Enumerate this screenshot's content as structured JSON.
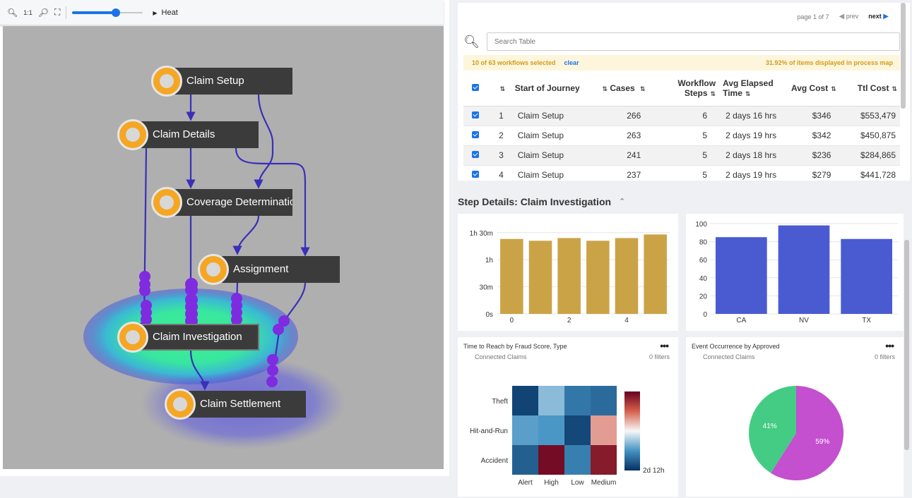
{
  "toolbar": {
    "zoom_in_icon": "zoom-in-icon",
    "one_to_one_label": "1:1",
    "zoom_out_icon": "zoom-out-icon",
    "fit_icon": "fit-screen-icon",
    "zoom_level": 0.62,
    "heat_label": "Heat"
  },
  "process_map": {
    "nodes": [
      {
        "label": "Claim Setup"
      },
      {
        "label": "Claim Details"
      },
      {
        "label": "Coverage Determination"
      },
      {
        "label": "Assignment"
      },
      {
        "label": "Claim Investigation"
      },
      {
        "label": "Claim Settlement"
      }
    ],
    "node_color": "#f5a623",
    "edge_color": "#3a2fb8",
    "token_color": "#7f2be0"
  },
  "table": {
    "pager": {
      "page_text": "page 1 of 7",
      "prev": "prev",
      "next": "next"
    },
    "search_placeholder": "Search Table",
    "selection_text": "10 of 63 workflows selected",
    "clear_label": "clear",
    "displayed_text": "31.92% of items  displayed in process map",
    "headers": {
      "journey": "Start of Journey",
      "cases": "Cases",
      "steps": "Workflow Steps",
      "elapsed": "Avg Elapsed Time",
      "cost": "Avg Cost",
      "total": "Ttl Cost"
    },
    "rows": [
      {
        "idx": "1",
        "journey": "Claim Setup",
        "cases": "266",
        "steps": "6",
        "elapsed": "2 days 16 hrs",
        "cost": "$346",
        "total": "$553,479"
      },
      {
        "idx": "2",
        "journey": "Claim Setup",
        "cases": "263",
        "steps": "5",
        "elapsed": "2 days 19 hrs",
        "cost": "$342",
        "total": "$450,875"
      },
      {
        "idx": "3",
        "journey": "Claim Setup",
        "cases": "241",
        "steps": "5",
        "elapsed": "2 days 18 hrs",
        "cost": "$236",
        "total": "$284,865"
      },
      {
        "idx": "4",
        "journey": "Claim Setup",
        "cases": "237",
        "steps": "5",
        "elapsed": "2 days 19 hrs",
        "cost": "$279",
        "total": "$441,728"
      }
    ]
  },
  "step_details": {
    "title": "Step Details: Claim Investigation",
    "collapse_icon": "chevron-up-double-icon"
  },
  "chart_data": [
    {
      "type": "bar",
      "x": [
        0,
        1,
        2,
        3,
        4,
        5
      ],
      "values": [
        83,
        81,
        84,
        81,
        84,
        88
      ],
      "unit": "minutes",
      "ylim": [
        0,
        100
      ],
      "ytick_values": [
        0,
        30,
        60,
        90
      ],
      "ytick_labels": [
        "0s",
        "30m",
        "1h",
        "1h 30m"
      ],
      "xtick_labels": [
        "0",
        "2",
        "4"
      ],
      "color": "#cba347",
      "grid": true
    },
    {
      "type": "bar",
      "categories": [
        "CA",
        "NV",
        "TX"
      ],
      "values": [
        85,
        98,
        83
      ],
      "ylim": [
        0,
        100
      ],
      "ytick_labels": [
        "0",
        "20",
        "40",
        "60",
        "80",
        "100"
      ],
      "color": "#4a5bd1",
      "grid": true
    },
    {
      "type": "heatmap",
      "title": "Time to Reach by Fraud Score, Type",
      "subtitle": "Connected Claims",
      "filters": "0 filters",
      "x_categories": [
        "Alert",
        "High",
        "Low",
        "Medium"
      ],
      "y_categories": [
        "Theft",
        "Hit-and-Run",
        "Accident"
      ],
      "values": [
        [
          0.05,
          0.35,
          0.18,
          0.15
        ],
        [
          0.28,
          0.26,
          0.06,
          0.65
        ],
        [
          0.12,
          0.97,
          0.2,
          0.93
        ]
      ],
      "colorbar_label": "2d 12h"
    },
    {
      "type": "pie",
      "title": "Event Occurrence by Approved",
      "subtitle": "Connected Claims",
      "filters": "0 filters",
      "values": [
        59,
        41
      ],
      "labels": [
        "59%",
        "41%"
      ],
      "colors": [
        "#c44fcf",
        "#44cc84"
      ]
    }
  ]
}
